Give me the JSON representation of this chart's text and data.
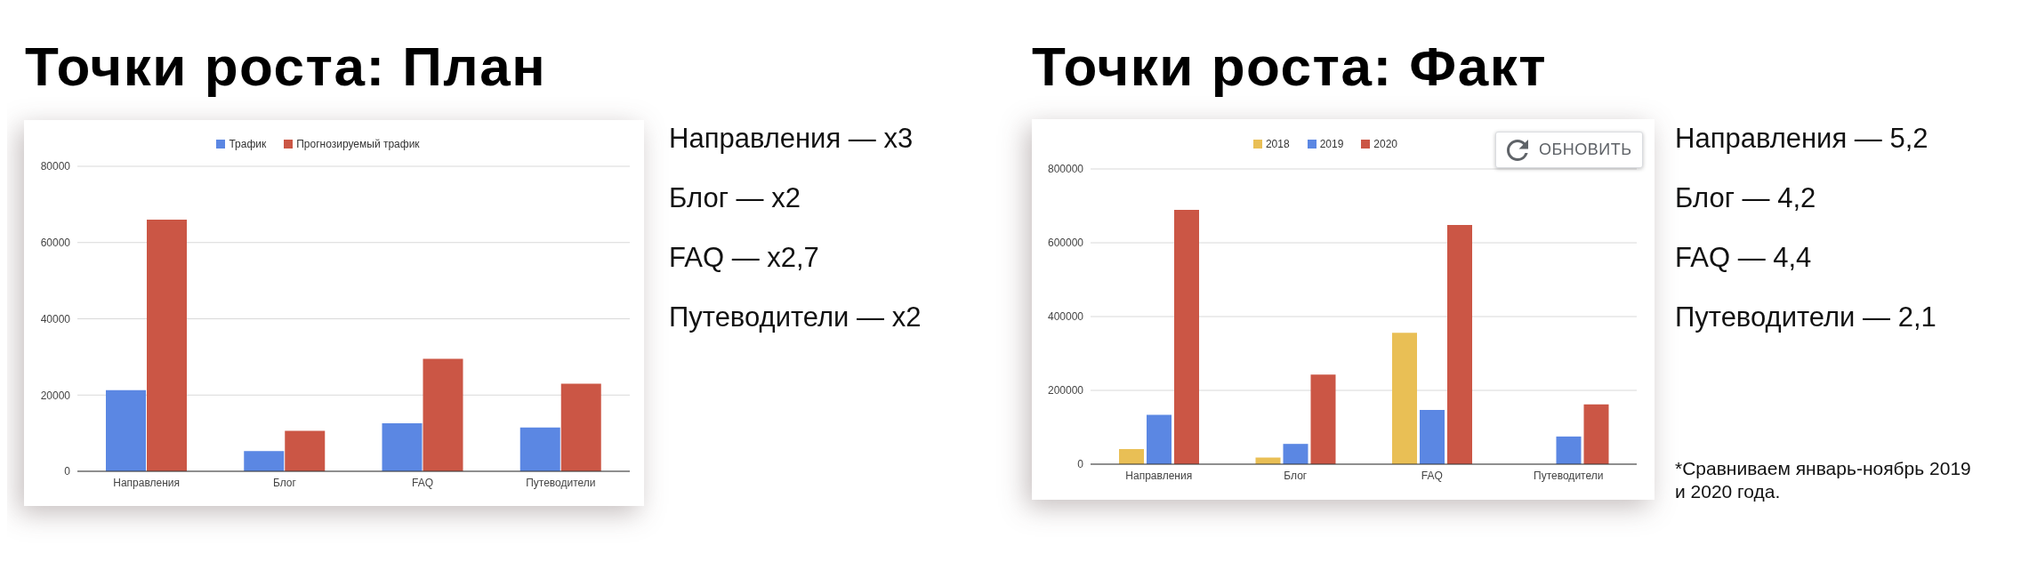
{
  "chart_data": [
    {
      "type": "bar",
      "title": "Точки роста: План",
      "categories": [
        "Направления",
        "Блог",
        "FAQ",
        "Путеводители"
      ],
      "series": [
        {
          "name": "Трафик",
          "color": "#5b87e3",
          "values": [
            21300,
            5300,
            12600,
            11500
          ]
        },
        {
          "name": "Прогнозируемый трафик",
          "color": "#cb5645",
          "values": [
            66000,
            10600,
            29500,
            23000
          ]
        }
      ],
      "ylim": [
        0,
        80000
      ],
      "yticks": [
        0,
        20000,
        40000,
        60000,
        80000
      ],
      "grid": "y",
      "legend": "top",
      "annotations": [
        "Направления — x3",
        "Блог — x2",
        "FAQ — x2,7",
        "Путеводители — x2"
      ]
    },
    {
      "type": "bar",
      "title": "Точки роста: Факт",
      "categories": [
        "Направления",
        "Блог",
        "FAQ",
        "Путеводители"
      ],
      "series": [
        {
          "name": "2018",
          "color": "#e9bf55",
          "values": [
            41000,
            18000,
            356000,
            null
          ]
        },
        {
          "name": "2019",
          "color": "#5b87e3",
          "values": [
            134000,
            55000,
            147000,
            75000
          ]
        },
        {
          "name": "2020",
          "color": "#cb5645",
          "values": [
            689000,
            243000,
            648000,
            162000
          ]
        }
      ],
      "ylim": [
        0,
        800000
      ],
      "yticks": [
        0,
        200000,
        400000,
        600000,
        800000
      ],
      "grid": "y",
      "legend": "top",
      "annotations": [
        "ОБНОВИТЬ",
        "Направления — 5,2",
        "Блог — 4,2",
        "FAQ — 4,4",
        "Путеводители — 2,1",
        "*Сравниваем январь-ноябрь 2019 и 2020 года."
      ]
    }
  ]
}
